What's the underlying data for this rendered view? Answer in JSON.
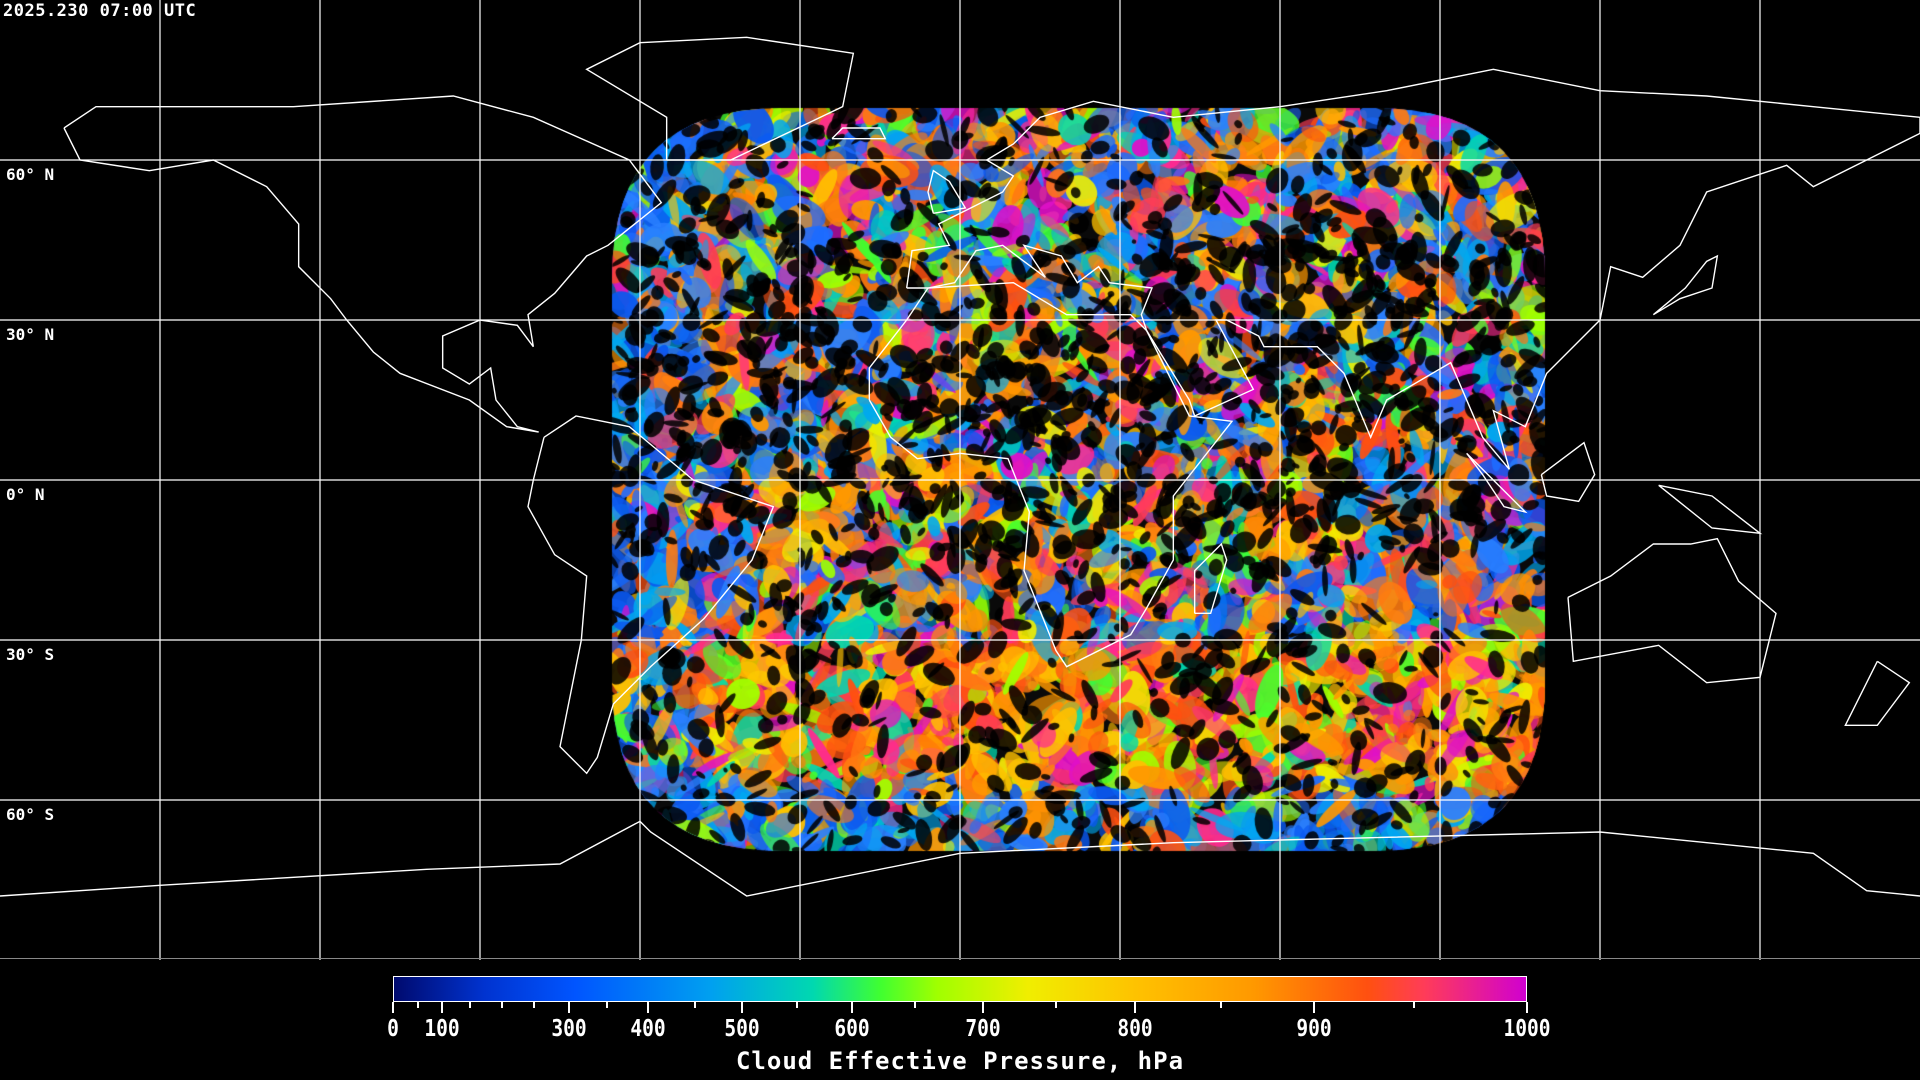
{
  "timestamp": "2025.230 07:00 UTC",
  "latitude_labels": [
    "60° N",
    "30° N",
    "0° N",
    "30° S",
    "60° S"
  ],
  "colorbar": {
    "title": "Cloud Effective Pressure, hPa",
    "tick_labels": [
      "0",
      "100",
      "300",
      "400",
      "500",
      "600",
      "700",
      "800",
      "900",
      "1000"
    ],
    "range": [
      0,
      1000
    ],
    "colormap": [
      "#000a6e",
      "#0033d0",
      "#0055ff",
      "#00a0f0",
      "#00d8b0",
      "#40ff30",
      "#a0ff00",
      "#f0ee00",
      "#ffc000",
      "#ff9800",
      "#ff5010",
      "#ff3c58",
      "#d000d0"
    ]
  },
  "map": {
    "projection": "equirectangular",
    "gridline_spacing_deg": 30,
    "coastline_color": "#ffffff",
    "grid_color": "#ffffff"
  }
}
